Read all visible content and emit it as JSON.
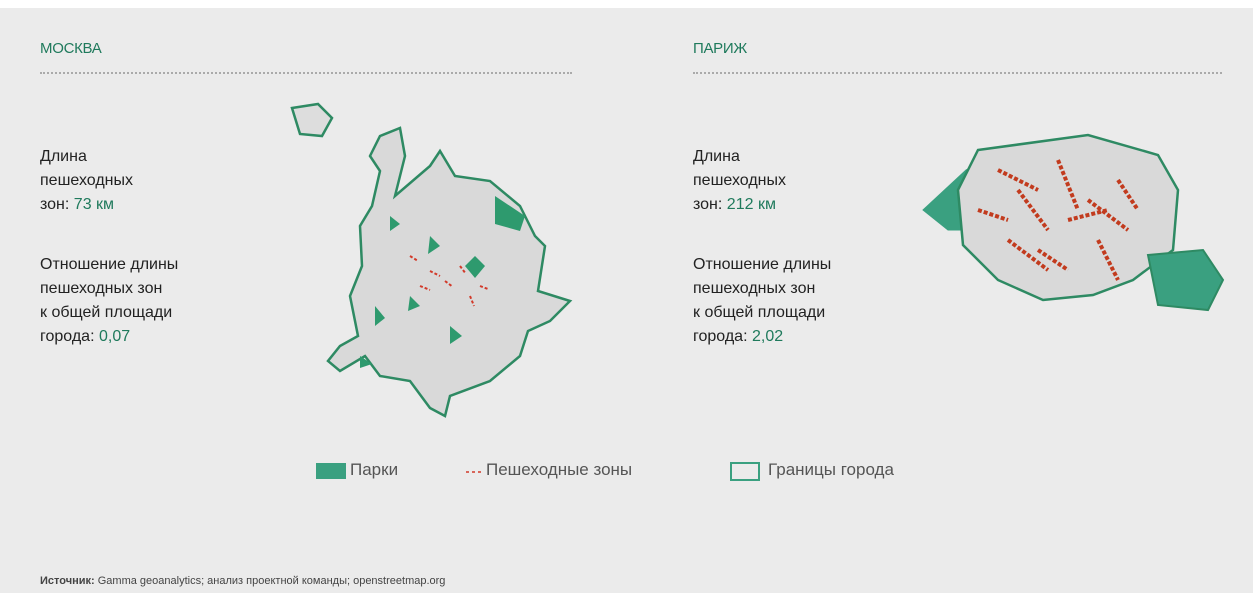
{
  "cities": [
    {
      "title": "МОСКВА",
      "length_lines": [
        "Длина",
        "пешеходных",
        "зон:"
      ],
      "length_value": "73 км",
      "ratio_lines": [
        "Отношение длины",
        "пешеходных зон",
        "к общей площади",
        "города:"
      ],
      "ratio_value": "0,07"
    },
    {
      "title": "ПАРИЖ",
      "length_lines": [
        "Длина",
        "пешеходных",
        "зон:"
      ],
      "length_value": "212 км",
      "ratio_lines": [
        "Отношение длины",
        "пешеходных зон",
        "к общей площади",
        "города:"
      ],
      "ratio_value": "2,02"
    }
  ],
  "legend": {
    "parks": "Парки",
    "pedestrian": "Пешеходные зоны",
    "borders": "Границы города"
  },
  "source": {
    "label": "Источник:",
    "text": "Gamma geoanalytics; анализ проектной команды; openstreetmap.org"
  }
}
